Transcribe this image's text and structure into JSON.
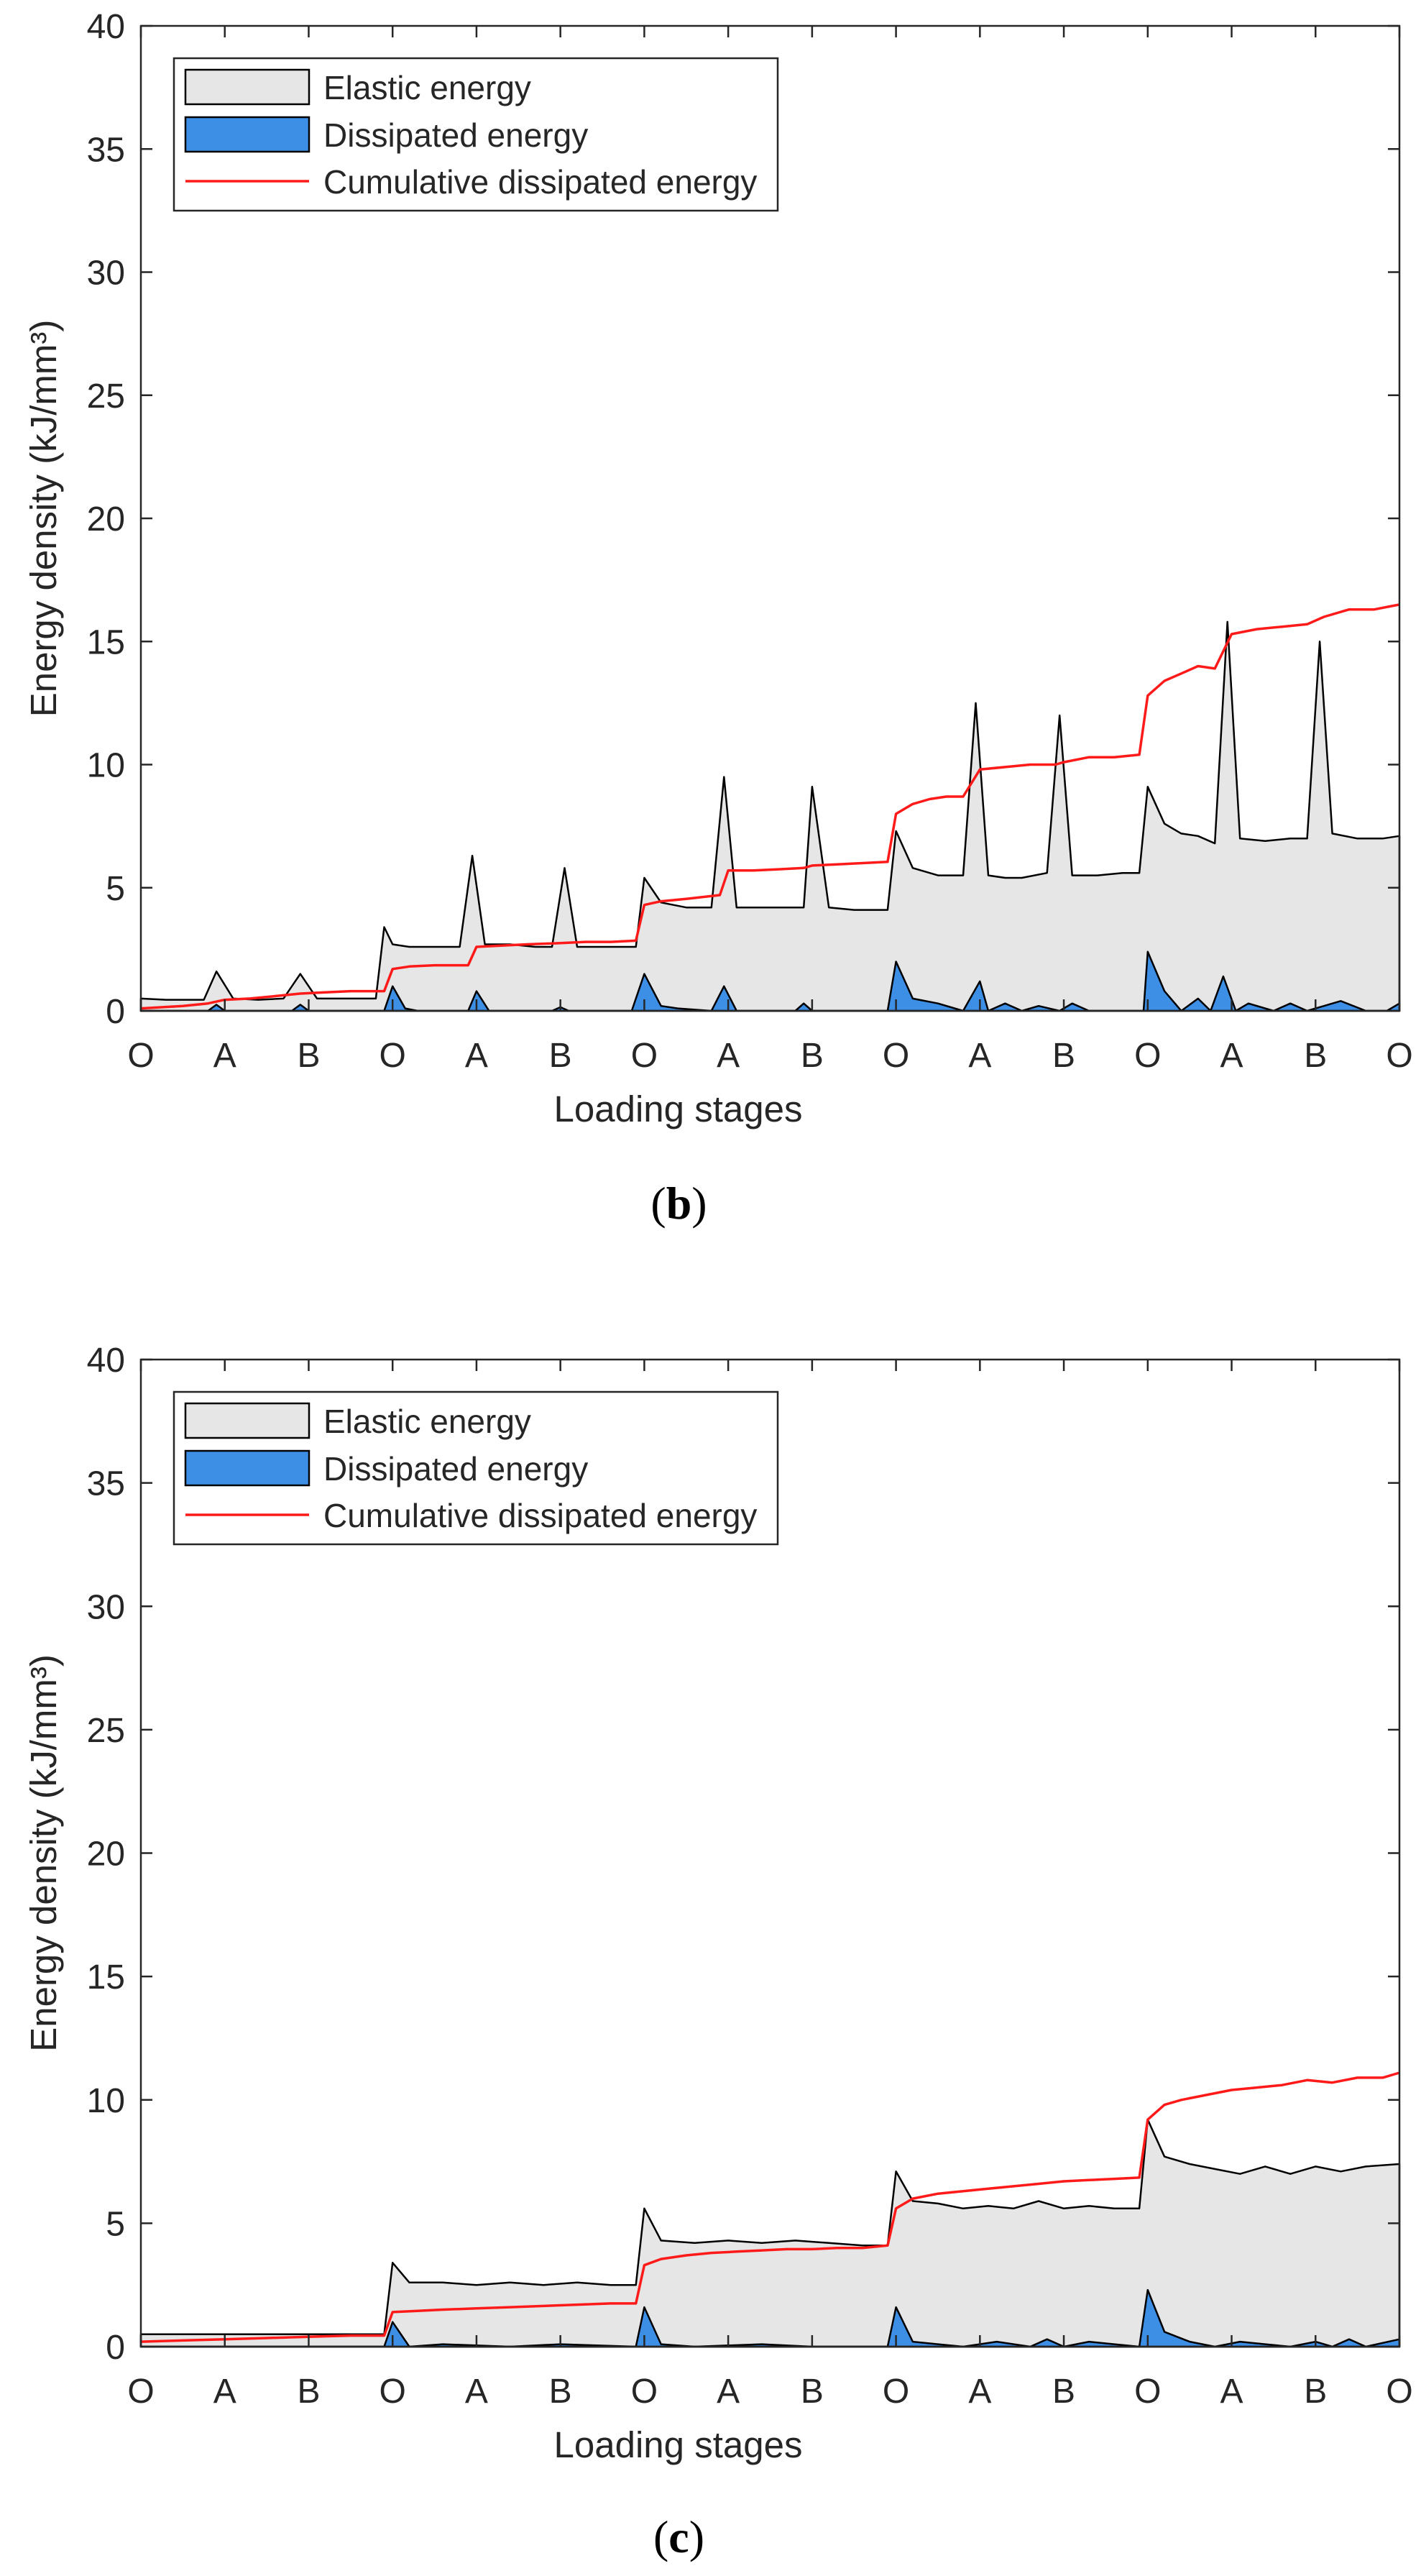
{
  "colors": {
    "elastic_fill": "#e6e6e6",
    "dissipated_fill": "#3d8fe6",
    "cumulative_line": "#ff1a1a",
    "axes": "#262626"
  },
  "chart_data": [
    {
      "id": "b",
      "type": "area",
      "panel_label": "b",
      "xlabel": "Loading stages",
      "ylabel": "Energy density (kJ/mm³)",
      "ylim": [
        0,
        40
      ],
      "yticks": [
        0,
        5,
        10,
        15,
        20,
        25,
        30,
        35,
        40
      ],
      "xlim": [
        0,
        15
      ],
      "xticks": [
        0,
        1,
        2,
        3,
        4,
        5,
        6,
        7,
        8,
        9,
        10,
        11,
        12,
        13,
        14,
        15
      ],
      "xticklabels": [
        "O",
        "A",
        "B",
        "O",
        "A",
        "B",
        "O",
        "A",
        "B",
        "O",
        "A",
        "B",
        "O",
        "A",
        "B",
        "O"
      ],
      "legend_position": "top-left",
      "legend": [
        "Elastic energy",
        "Dissipated energy",
        "Cumulative dissipated energy"
      ],
      "series": [
        {
          "name": "Elastic energy",
          "style": "area",
          "x": [
            0,
            0.3,
            0.55,
            0.75,
            0.9,
            1.1,
            1.4,
            1.7,
            1.9,
            2.1,
            2.4,
            2.8,
            2.9,
            3.0,
            3.2,
            3.5,
            3.8,
            3.95,
            4.1,
            4.4,
            4.7,
            4.9,
            5.05,
            5.2,
            5.5,
            5.8,
            5.9,
            6.0,
            6.2,
            6.5,
            6.8,
            6.95,
            7.1,
            7.4,
            7.7,
            7.9,
            8.0,
            8.2,
            8.5,
            8.8,
            8.9,
            9.0,
            9.2,
            9.5,
            9.8,
            9.95,
            10.1,
            10.3,
            10.5,
            10.8,
            10.95,
            11.1,
            11.4,
            11.7,
            11.9,
            12.0,
            12.2,
            12.4,
            12.6,
            12.8,
            12.95,
            13.1,
            13.4,
            13.7,
            13.9,
            14.05,
            14.2,
            14.5,
            14.8,
            15.0
          ],
          "values": [
            0.5,
            0.45,
            0.45,
            0.45,
            1.6,
            0.5,
            0.45,
            0.5,
            1.5,
            0.5,
            0.5,
            0.5,
            3.4,
            2.7,
            2.6,
            2.6,
            2.6,
            6.3,
            2.7,
            2.7,
            2.6,
            2.6,
            5.8,
            2.6,
            2.6,
            2.6,
            2.6,
            5.4,
            4.4,
            4.2,
            4.2,
            9.5,
            4.2,
            4.2,
            4.2,
            4.2,
            9.1,
            4.2,
            4.1,
            4.1,
            4.1,
            7.3,
            5.8,
            5.5,
            5.5,
            12.5,
            5.5,
            5.4,
            5.4,
            5.6,
            12.0,
            5.5,
            5.5,
            5.6,
            5.6,
            9.1,
            7.6,
            7.2,
            7.1,
            6.8,
            15.8,
            7.0,
            6.9,
            7.0,
            7.0,
            15.0,
            7.2,
            7.0,
            7.0,
            7.1
          ]
        },
        {
          "name": "Dissipated energy",
          "style": "area",
          "x": [
            0,
            0.8,
            0.9,
            1.0,
            1.8,
            1.9,
            2.0,
            2.9,
            3.0,
            3.15,
            3.3,
            3.9,
            4.0,
            4.15,
            4.5,
            4.9,
            5.0,
            5.1,
            5.85,
            6.0,
            6.2,
            6.4,
            6.8,
            6.95,
            7.1,
            7.5,
            7.8,
            7.9,
            8.0,
            8.3,
            8.6,
            8.9,
            9.0,
            9.2,
            9.5,
            9.8,
            10.0,
            10.1,
            10.3,
            10.5,
            10.7,
            10.95,
            11.1,
            11.3,
            11.5,
            11.8,
            11.95,
            12.0,
            12.2,
            12.4,
            12.6,
            12.75,
            12.9,
            13.05,
            13.2,
            13.5,
            13.7,
            13.9,
            14.1,
            14.3,
            14.6,
            14.85,
            15.0
          ],
          "values": [
            0,
            0,
            0.25,
            0,
            0,
            0.25,
            0,
            0,
            1.0,
            0.1,
            0,
            0,
            0.8,
            0,
            0,
            0,
            0.15,
            0,
            0,
            1.5,
            0.2,
            0.1,
            0,
            1.0,
            0,
            0,
            0,
            0.3,
            0,
            0,
            0,
            0,
            2.0,
            0.5,
            0.3,
            0,
            1.2,
            0,
            0.3,
            0,
            0.2,
            0,
            0.3,
            0,
            0,
            0,
            0,
            2.4,
            0.8,
            0,
            0.5,
            0,
            1.4,
            0,
            0.3,
            0,
            0.3,
            0,
            0.2,
            0.4,
            0,
            0,
            0.3
          ]
        },
        {
          "name": "Cumulative dissipated energy",
          "style": "line",
          "x": [
            0,
            0.5,
            0.8,
            1.0,
            1.3,
            1.6,
            1.9,
            2.2,
            2.5,
            2.9,
            3.0,
            3.2,
            3.5,
            3.9,
            4.0,
            4.3,
            4.6,
            5.0,
            5.3,
            5.6,
            5.9,
            6.0,
            6.2,
            6.5,
            6.9,
            7.0,
            7.3,
            7.6,
            7.9,
            8.0,
            8.3,
            8.6,
            8.9,
            9.0,
            9.2,
            9.4,
            9.6,
            9.8,
            10.0,
            10.3,
            10.6,
            10.9,
            11.0,
            11.3,
            11.6,
            11.9,
            12.0,
            12.2,
            12.4,
            12.6,
            12.8,
            13.0,
            13.3,
            13.6,
            13.9,
            14.1,
            14.4,
            14.7,
            15.0
          ],
          "values": [
            0.1,
            0.2,
            0.3,
            0.45,
            0.5,
            0.6,
            0.7,
            0.75,
            0.8,
            0.8,
            1.7,
            1.8,
            1.85,
            1.85,
            2.6,
            2.65,
            2.7,
            2.75,
            2.8,
            2.8,
            2.85,
            4.3,
            4.45,
            4.55,
            4.7,
            5.7,
            5.7,
            5.75,
            5.8,
            5.9,
            5.95,
            6.0,
            6.05,
            8.0,
            8.4,
            8.6,
            8.7,
            8.7,
            9.8,
            9.9,
            10.0,
            10.0,
            10.1,
            10.3,
            10.3,
            10.4,
            12.8,
            13.4,
            13.7,
            14.0,
            13.9,
            15.3,
            15.5,
            15.6,
            15.7,
            16.0,
            16.3,
            16.3,
            16.5
          ]
        }
      ]
    },
    {
      "id": "c",
      "type": "area",
      "panel_label": "c",
      "xlabel": "Loading stages",
      "ylabel": "Energy density (kJ/mm³)",
      "ylim": [
        0,
        40
      ],
      "yticks": [
        0,
        5,
        10,
        15,
        20,
        25,
        30,
        35,
        40
      ],
      "xlim": [
        0,
        15
      ],
      "xticks": [
        0,
        1,
        2,
        3,
        4,
        5,
        6,
        7,
        8,
        9,
        10,
        11,
        12,
        13,
        14,
        15
      ],
      "xticklabels": [
        "O",
        "A",
        "B",
        "O",
        "A",
        "B",
        "O",
        "A",
        "B",
        "O",
        "A",
        "B",
        "O",
        "A",
        "B",
        "O"
      ],
      "legend_position": "top-left",
      "legend": [
        "Elastic energy",
        "Dissipated energy",
        "Cumulative dissipated energy"
      ],
      "series": [
        {
          "name": "Elastic energy",
          "style": "area",
          "x": [
            0,
            0.5,
            1.0,
            1.5,
            2.0,
            2.5,
            2.9,
            3.0,
            3.2,
            3.6,
            4.0,
            4.4,
            4.8,
            5.2,
            5.6,
            5.9,
            6.0,
            6.2,
            6.6,
            7.0,
            7.4,
            7.8,
            8.2,
            8.6,
            8.9,
            9.0,
            9.2,
            9.5,
            9.8,
            10.1,
            10.4,
            10.7,
            11.0,
            11.3,
            11.6,
            11.9,
            12.0,
            12.2,
            12.5,
            12.8,
            13.1,
            13.4,
            13.7,
            14.0,
            14.3,
            14.6,
            15.0
          ],
          "values": [
            0.5,
            0.5,
            0.5,
            0.5,
            0.5,
            0.5,
            0.5,
            3.4,
            2.6,
            2.6,
            2.5,
            2.6,
            2.5,
            2.6,
            2.5,
            2.5,
            5.6,
            4.3,
            4.2,
            4.3,
            4.2,
            4.3,
            4.2,
            4.1,
            4.1,
            7.1,
            5.9,
            5.8,
            5.6,
            5.7,
            5.6,
            5.9,
            5.6,
            5.7,
            5.6,
            5.6,
            9.2,
            7.7,
            7.4,
            7.2,
            7.0,
            7.3,
            7.0,
            7.3,
            7.1,
            7.3,
            7.4
          ]
        },
        {
          "name": "Dissipated energy",
          "style": "area",
          "x": [
            0,
            2.9,
            3.0,
            3.2,
            3.6,
            4.4,
            5.0,
            5.9,
            6.0,
            6.2,
            6.6,
            7.4,
            8.0,
            8.9,
            9.0,
            9.2,
            9.5,
            9.8,
            10.2,
            10.6,
            10.8,
            11.0,
            11.3,
            11.6,
            11.9,
            12.0,
            12.2,
            12.5,
            12.8,
            13.1,
            13.4,
            13.7,
            14.0,
            14.2,
            14.4,
            14.6,
            15.0
          ],
          "values": [
            0,
            0,
            1.0,
            0,
            0.1,
            0,
            0.1,
            0,
            1.6,
            0.1,
            0,
            0.1,
            0,
            0,
            1.6,
            0.2,
            0.1,
            0,
            0.2,
            0,
            0.3,
            0,
            0.2,
            0.1,
            0,
            2.3,
            0.6,
            0.2,
            0,
            0.2,
            0.1,
            0,
            0.2,
            0,
            0.3,
            0,
            0.3
          ]
        },
        {
          "name": "Cumulative dissipated energy",
          "style": "line",
          "x": [
            0,
            0.5,
            1.0,
            1.5,
            2.0,
            2.5,
            2.9,
            3.0,
            3.3,
            3.6,
            4.0,
            4.4,
            4.8,
            5.2,
            5.6,
            5.9,
            6.0,
            6.2,
            6.5,
            6.8,
            7.1,
            7.4,
            7.7,
            8.0,
            8.3,
            8.6,
            8.9,
            9.0,
            9.2,
            9.5,
            9.8,
            10.1,
            10.4,
            10.7,
            11.0,
            11.3,
            11.6,
            11.9,
            12.0,
            12.2,
            12.4,
            12.7,
            13.0,
            13.3,
            13.6,
            13.9,
            14.2,
            14.5,
            14.8,
            15.0
          ],
          "values": [
            0.2,
            0.25,
            0.3,
            0.35,
            0.4,
            0.45,
            0.45,
            1.4,
            1.45,
            1.5,
            1.55,
            1.6,
            1.65,
            1.7,
            1.75,
            1.75,
            3.3,
            3.55,
            3.7,
            3.8,
            3.85,
            3.9,
            3.95,
            3.95,
            4.0,
            4.0,
            4.1,
            5.6,
            6.0,
            6.2,
            6.3,
            6.4,
            6.5,
            6.6,
            6.7,
            6.75,
            6.8,
            6.85,
            9.2,
            9.8,
            10.0,
            10.2,
            10.4,
            10.5,
            10.6,
            10.8,
            10.7,
            10.9,
            10.9,
            11.1
          ]
        }
      ]
    }
  ]
}
